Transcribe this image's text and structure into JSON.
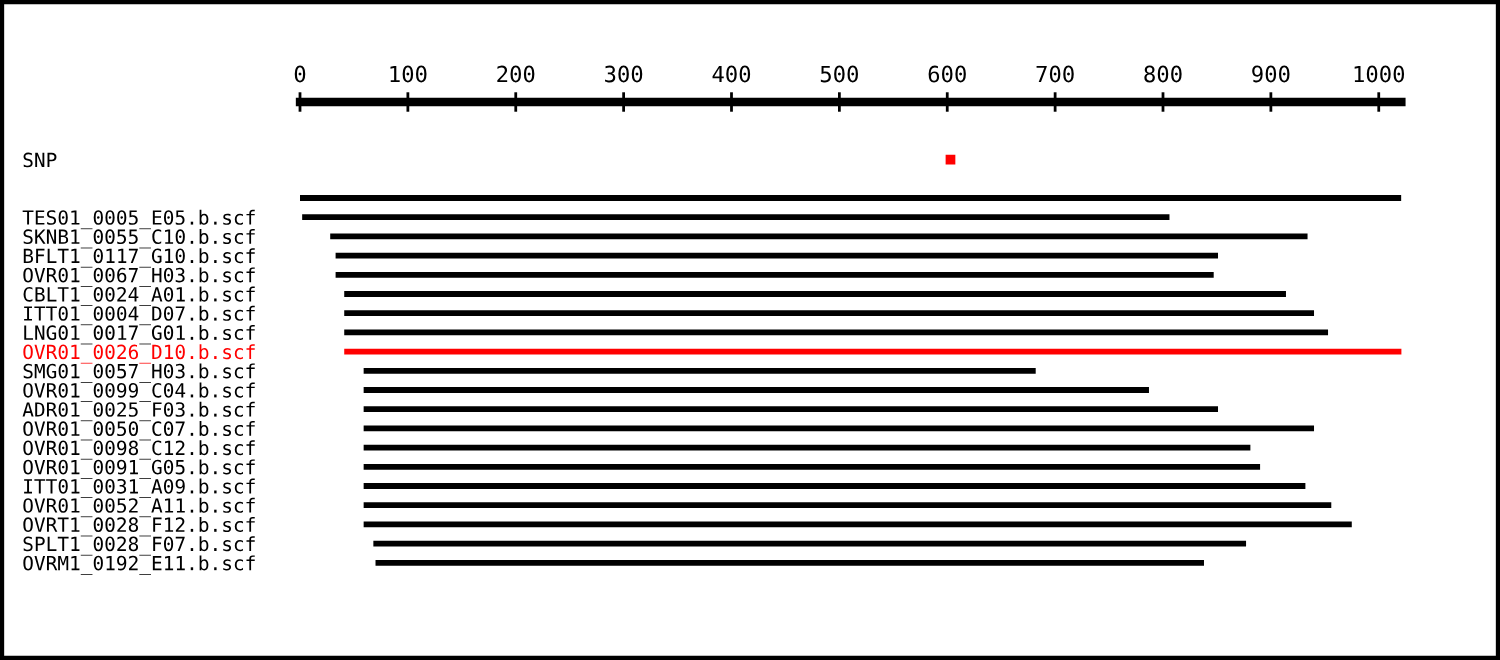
{
  "chart_data": {
    "type": "bar",
    "orientation": "horizontal",
    "categories": [
      "SNP",
      null,
      null,
      "TES01_0005_E05.b.scf",
      "SKNB1_0055_C10.b.scf",
      "BFLT1_0117_G10.b.scf",
      "OVR01_0067_H03.b.scf",
      "CBLT1_0024_A01.b.scf",
      "ITT01_0004_D07.b.scf",
      "LNG01_0017_G01.b.scf",
      "OVR01_0026_D10.b.scf",
      "SMG01_0057_H03.b.scf",
      "OVR01_0099_C04.b.scf",
      "ADR01_0025_F03.b.scf",
      "OVR01_0050_C07.b.scf",
      "OVR01_0098_C12.b.scf",
      "OVR01_0091_G05.b.scf",
      "ITT01_0031_A09.b.scf",
      "OVR01_0052_A11.b.scf",
      "OVRT1_0028_F12.b.scf",
      "SPLT1_0028_F07.b.scf",
      "OVRM1_0192_E11.b.scf"
    ],
    "series": [
      {
        "base": [
          null,
          null,
          0,
          2,
          28,
          33,
          33,
          41,
          41,
          41,
          41,
          59,
          59,
          59,
          59,
          59,
          59,
          59,
          59,
          59,
          68,
          70
        ],
        "values": [
          null,
          null,
          1021,
          804,
          906,
          818,
          814,
          873,
          899,
          912,
          982,
          623,
          728,
          792,
          881,
          822,
          831,
          873,
          897,
          916,
          809,
          768
        ],
        "colors": [
          "#000000",
          "#000000",
          "#000000",
          "#000000",
          "#000000",
          "#000000",
          "#000000",
          "#000000",
          "#000000",
          "#000000",
          "#ff0000",
          "#000000",
          "#000000",
          "#000000",
          "#000000",
          "#000000",
          "#000000",
          "#000000",
          "#000000",
          "#000000",
          "#000000",
          "#000000"
        ]
      },
      {
        "type": "scatter",
        "marker": "square",
        "color": "#ff0000",
        "values": [
          603,
          null,
          null,
          null,
          null,
          null,
          null,
          null,
          null,
          null,
          null,
          null,
          null,
          null,
          null,
          null,
          null,
          null,
          null,
          null,
          null,
          null
        ]
      }
    ],
    "xlim": [
      0,
      1021
    ],
    "xticks": [
      0,
      100,
      200,
      300,
      400,
      500,
      600,
      700,
      800,
      900,
      1000
    ],
    "grid": false,
    "legend": false
  }
}
